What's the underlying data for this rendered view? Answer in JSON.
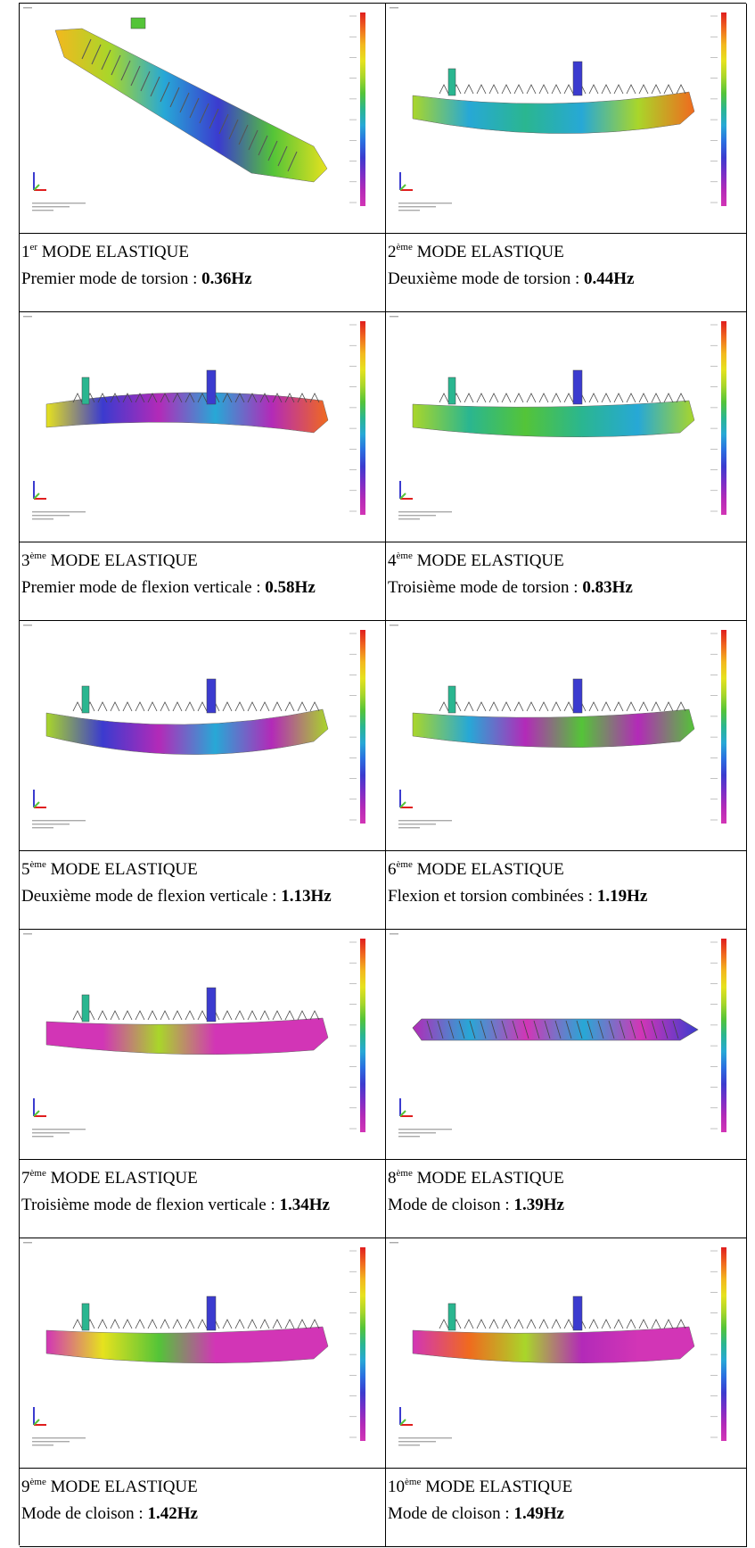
{
  "colors": {
    "scale": [
      "#e01e1e",
      "#f06a1e",
      "#f3b81e",
      "#e6e21e",
      "#a9d62a",
      "#54c438",
      "#2ab690",
      "#27a8d6",
      "#2a6ee0",
      "#3b3bcf",
      "#7a2ec7",
      "#b32ab8",
      "#d235b6"
    ],
    "hull_pink": "#d235b6",
    "hull_green": "#a9d62a"
  },
  "modes": [
    {
      "num": "1",
      "sup": "er",
      "title": "MODE ELASTIQUE",
      "desc": "Premier mode de torsion : ",
      "freq": "0.36Hz",
      "view": "oblique"
    },
    {
      "num": "2",
      "sup": "ème",
      "title": "MODE ELASTIQUE",
      "desc": "Deuxième mode de torsion : ",
      "freq": "0.44Hz",
      "view": "side"
    },
    {
      "num": "3",
      "sup": "ème",
      "title": "MODE ELASTIQUE",
      "desc": "Premier mode de flexion verticale : ",
      "freq": "0.58Hz",
      "view": "side"
    },
    {
      "num": "4",
      "sup": "ème",
      "title": "MODE ELASTIQUE",
      "desc": "Troisième mode de torsion : ",
      "freq": "0.83Hz",
      "view": "side"
    },
    {
      "num": "5",
      "sup": "ème",
      "title": "MODE ELASTIQUE",
      "desc": "Deuxième mode de flexion verticale : ",
      "freq": "1.13Hz",
      "view": "side"
    },
    {
      "num": "6",
      "sup": "ème",
      "title": "MODE ELASTIQUE",
      "desc": "Flexion et torsion combinées : ",
      "freq": "1.19Hz",
      "view": "side"
    },
    {
      "num": "7",
      "sup": "ème",
      "title": "MODE ELASTIQUE",
      "desc": "Troisième mode de flexion verticale : ",
      "freq": "1.34Hz",
      "view": "side"
    },
    {
      "num": "8",
      "sup": "ème",
      "title": "MODE ELASTIQUE",
      "desc": "Mode de cloison : ",
      "freq": "1.39Hz",
      "view": "top"
    },
    {
      "num": "9",
      "sup": "ème",
      "title": "MODE ELASTIQUE",
      "desc": "Mode de cloison : ",
      "freq": "1.42Hz",
      "view": "side"
    },
    {
      "num": "10",
      "sup": "ème",
      "title": "MODE ELASTIQUE",
      "desc": "Mode de cloison : ",
      "freq": "1.49Hz",
      "view": "side"
    }
  ]
}
